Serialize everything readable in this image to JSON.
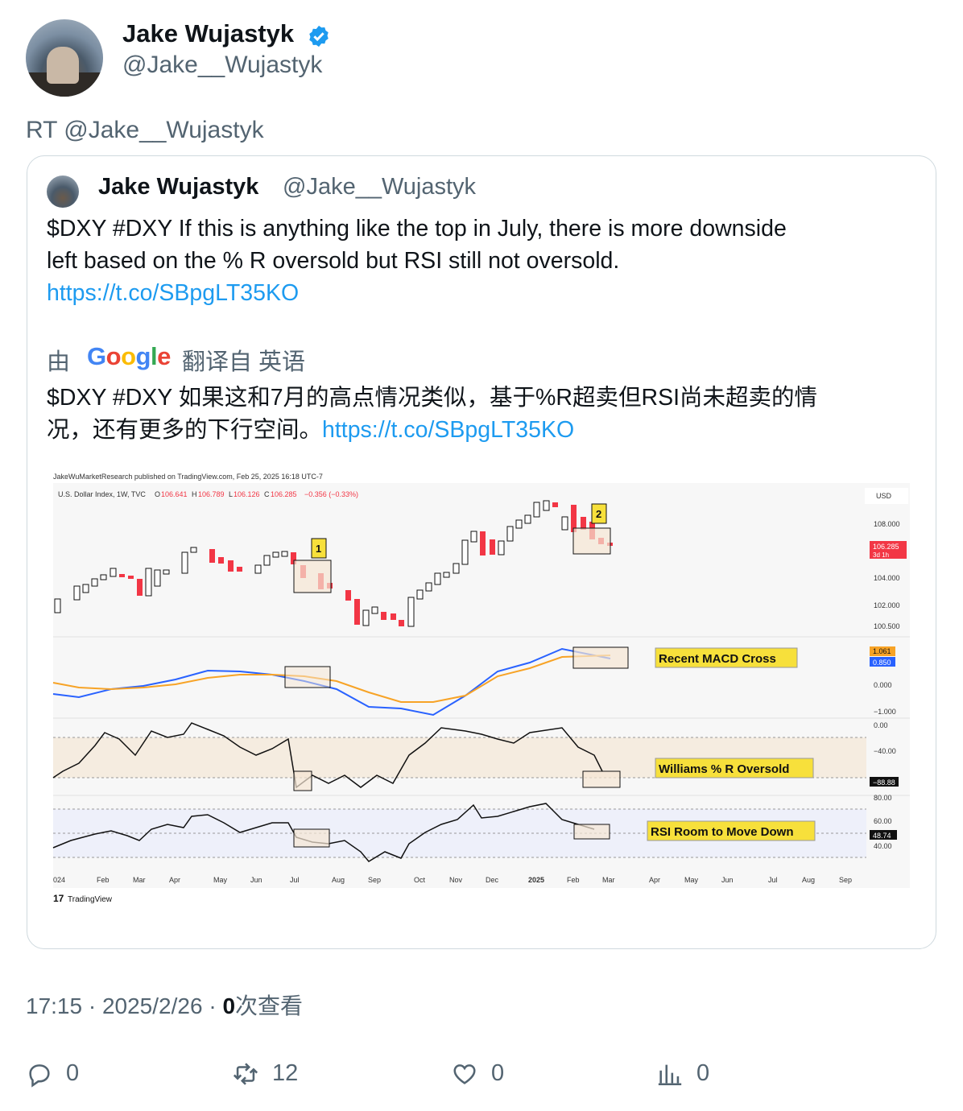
{
  "header": {
    "name": "Jake Wujastyk",
    "handle": "@Jake__Wujastyk"
  },
  "retweet_line": "RT @Jake__Wujastyk",
  "quoted": {
    "name": "Jake Wujastyk",
    "handle": "@Jake__Wujastyk",
    "text_line1": "$DXY #DXY If this is anything like the top in July, there is more downside",
    "text_line2": "left based on the % R oversold but RSI still not oversold.",
    "link": "https://t.co/SBpgLT35KO",
    "translate_by": "由",
    "translate_from": "翻译自 英语",
    "translated_line1": "$DXY #DXY 如果这和7月的高点情况类似，基于%R超卖但RSI尚未超卖的情",
    "translated_line2": "况，还有更多的下行空间。",
    "translated_link": "https://t.co/SBpgLT35KO"
  },
  "chart": {
    "header": "JakeWuMarketResearch published on TradingView.com, Feb 25, 2025 16:18 UTC-7",
    "symbol": "U.S. Dollar Index, 1W, TVC",
    "o_label": "O",
    "o_value": "106.641",
    "h_label": "H",
    "h_value": "106.789",
    "l_label": "L",
    "l_value": "106.126",
    "c_label": "C",
    "c_value": "106.285",
    "change": "−0.356 (−0.33%)",
    "currency": "USD",
    "price_ticks": [
      "108.000",
      "104.000",
      "102.000",
      "100.500"
    ],
    "last_price": "106.285",
    "last_price_time": "3d 1h",
    "macd_ticks": [
      "0.000",
      "−1.000"
    ],
    "macd_value_1": "1.061",
    "macd_value_2": "0.850",
    "wr_ticks": [
      "0.00",
      "−40.00"
    ],
    "wr_value": "−88.88",
    "rsi_ticks": [
      "80.00",
      "60.00",
      "40.00"
    ],
    "rsi_value": "48.74",
    "box_label_1": "1",
    "box_label_2": "2",
    "annotation_macd": "Recent MACD Cross",
    "annotation_wr": "Williams % R Oversold",
    "annotation_rsi": "RSI Room to Move Down",
    "x_labels": [
      "024",
      "Feb",
      "Mar",
      "Apr",
      "May",
      "Jun",
      "Jul",
      "Aug",
      "Sep",
      "Oct",
      "Nov",
      "Dec",
      "2025",
      "Feb",
      "Mar",
      "Apr",
      "May",
      "Jun",
      "Jul",
      "Aug",
      "Sep"
    ],
    "footer": "TradingView",
    "colors": {
      "up": "#111111",
      "down": "#f23645",
      "macd": "#2962ff",
      "signal": "#f7a326",
      "annotation_bg": "#f7e03b"
    }
  },
  "meta": {
    "time": "17:15",
    "sep": "·",
    "date": "2025/2/26",
    "views_count": "0",
    "views_label": "次查看"
  },
  "actions": {
    "replies": "0",
    "retweets": "12",
    "likes": "0",
    "views": "0"
  }
}
